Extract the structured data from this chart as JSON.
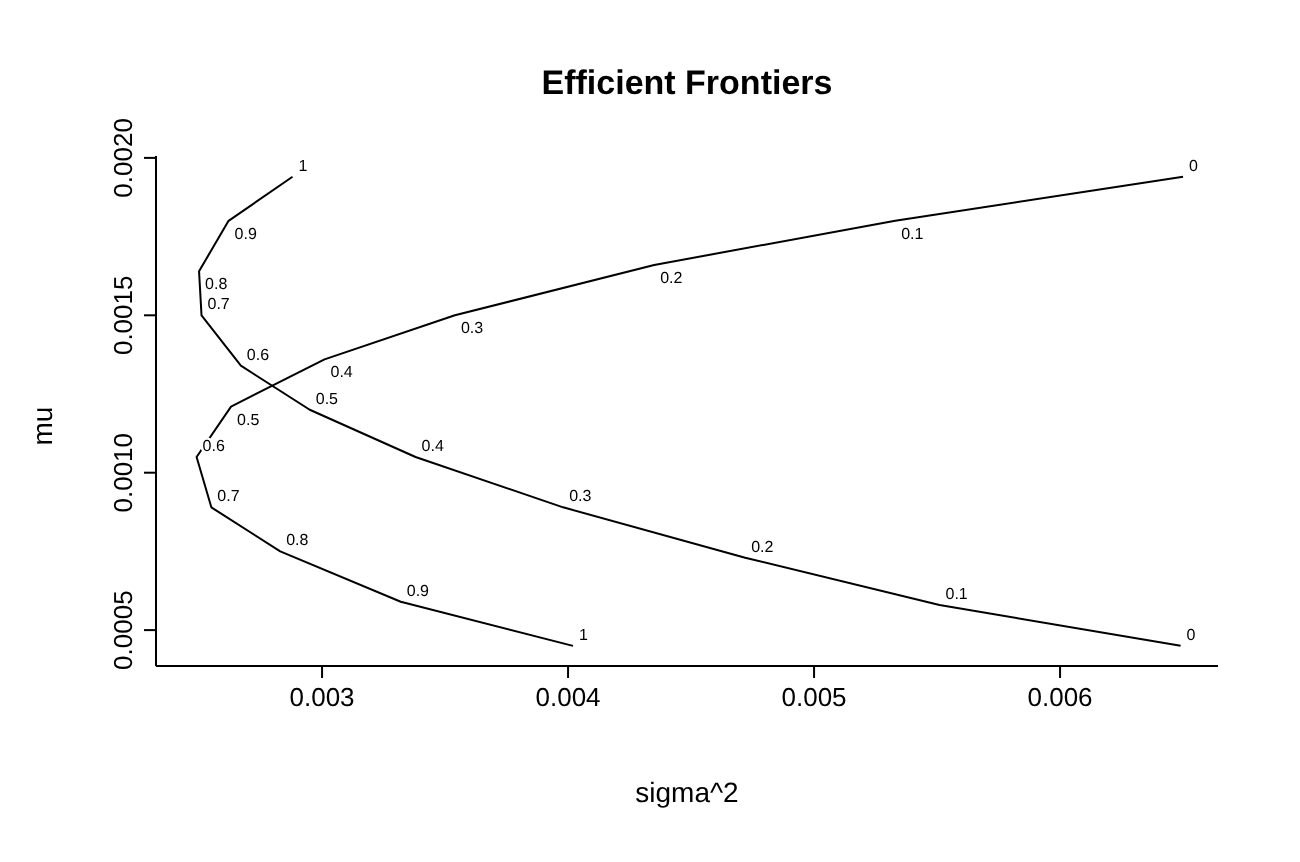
{
  "chart_data": {
    "type": "line",
    "title": "Efficient Frontiers",
    "xlabel": "sigma^2",
    "ylabel": "mu",
    "xlim": [
      0.002325,
      0.006642
    ],
    "xticks": [
      {
        "value": 0.003,
        "label": "0.003"
      },
      {
        "value": 0.004,
        "label": "0.004"
      },
      {
        "value": 0.005,
        "label": "0.005"
      },
      {
        "value": 0.006,
        "label": "0.006"
      }
    ],
    "ylim": [
      0.000386,
      0.002006
    ],
    "yticks": [
      {
        "value": 0.0005,
        "label": "0.0005"
      },
      {
        "value": 0.001,
        "label": "0.0010"
      },
      {
        "value": 0.0015,
        "label": "0.0015"
      },
      {
        "value": 0.002,
        "label": "0.0020"
      }
    ],
    "grid": false,
    "legend": false,
    "marker": "none",
    "line_style": "solid",
    "series": [
      {
        "color": "#000000",
        "x": [
          0.00288,
          0.00262,
          0.0025,
          0.00251,
          0.00267,
          0.00295,
          0.00338,
          0.00398,
          0.00472,
          0.00551,
          0.00649
        ],
        "values": [
          0.00194,
          0.0018,
          0.00164,
          0.0015,
          0.00134,
          0.0012,
          0.00105,
          0.00089,
          0.00073,
          0.00058,
          0.00045
        ]
      },
      {
        "color": "#000000",
        "x": [
          0.00402,
          0.00332,
          0.00283,
          0.00255,
          0.00249,
          0.00263,
          0.00301,
          0.00354,
          0.00435,
          0.00533,
          0.0065
        ],
        "values": [
          0.00045,
          0.00059,
          0.00075,
          0.00089,
          0.00105,
          0.00121,
          0.00136,
          0.0015,
          0.00166,
          0.0018,
          0.00194
        ]
      }
    ],
    "annotations": [
      {
        "text": "1",
        "x": 0.00288,
        "y": 0.00194
      },
      {
        "text": "0.9",
        "x": 0.00262,
        "y": 0.0018
      },
      {
        "text": "0.8",
        "x": 0.0025,
        "y": 0.00164
      },
      {
        "text": "0.7",
        "x": 0.00251,
        "y": 0.0015
      },
      {
        "text": "0.6",
        "x": 0.00267,
        "y": 0.00134
      },
      {
        "text": "0.5",
        "x": 0.00295,
        "y": 0.0012
      },
      {
        "text": "0.4",
        "x": 0.00338,
        "y": 0.00105
      },
      {
        "text": "0.3",
        "x": 0.00398,
        "y": 0.00089
      },
      {
        "text": "0.2",
        "x": 0.00472,
        "y": 0.00073
      },
      {
        "text": "0.1",
        "x": 0.00551,
        "y": 0.00058
      },
      {
        "text": "0",
        "x": 0.00649,
        "y": 0.00045
      },
      {
        "text": "1",
        "x": 0.00402,
        "y": 0.00045
      },
      {
        "text": "0.9",
        "x": 0.00332,
        "y": 0.00059
      },
      {
        "text": "0.8",
        "x": 0.00283,
        "y": 0.00075
      },
      {
        "text": "0.7",
        "x": 0.00255,
        "y": 0.00089
      },
      {
        "text": "0.6",
        "x": 0.00249,
        "y": 0.00105
      },
      {
        "text": "0.5",
        "x": 0.00263,
        "y": 0.00121
      },
      {
        "text": "0.4",
        "x": 0.00301,
        "y": 0.00136
      },
      {
        "text": "0.3",
        "x": 0.00354,
        "y": 0.0015
      },
      {
        "text": "0.2",
        "x": 0.00435,
        "y": 0.00166
      },
      {
        "text": "0.1",
        "x": 0.00533,
        "y": 0.0018
      },
      {
        "text": "0",
        "x": 0.0065,
        "y": 0.00194
      }
    ]
  }
}
